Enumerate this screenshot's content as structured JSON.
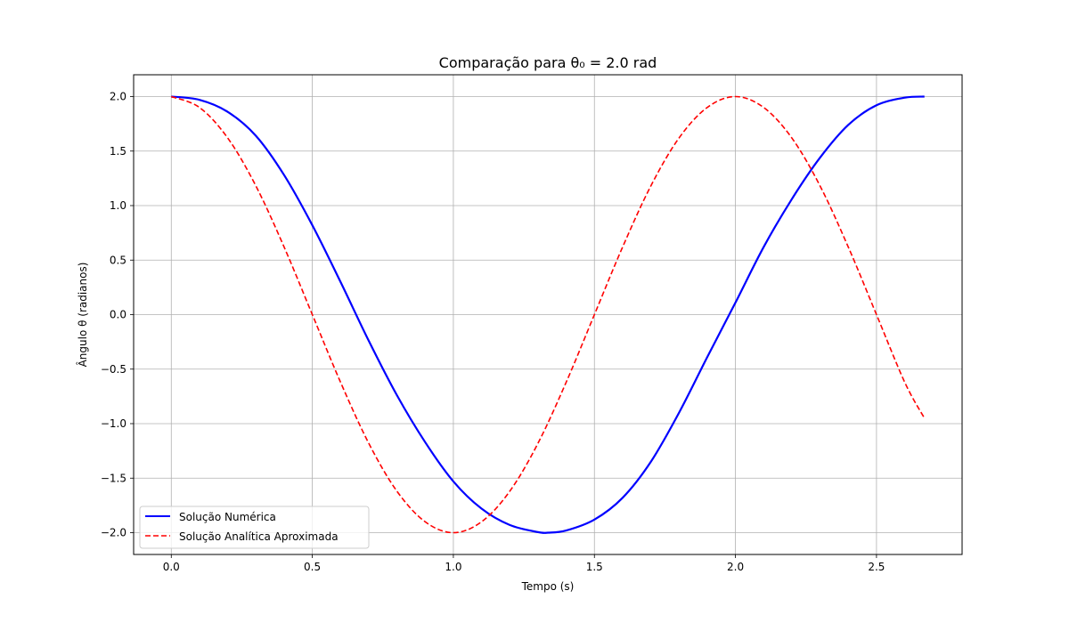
{
  "chart_data": {
    "type": "line",
    "title": "Comparação para θ₀ = 2.0 rad",
    "xlabel": "Tempo (s)",
    "ylabel": "Ângulo θ (radianos)",
    "xlim": [
      -0.1335,
      2.8035
    ],
    "ylim": [
      -2.2,
      2.2
    ],
    "xticks": [
      0.0,
      0.5,
      1.0,
      1.5,
      2.0,
      2.5
    ],
    "xtick_labels": [
      "0.0",
      "0.5",
      "1.0",
      "1.5",
      "2.0",
      "2.5"
    ],
    "yticks": [
      -2.0,
      -1.5,
      -1.0,
      -0.5,
      0.0,
      0.5,
      1.0,
      1.5,
      2.0
    ],
    "ytick_labels": [
      "−2.0",
      "−1.5",
      "−1.0",
      "−0.5",
      "0.0",
      "0.5",
      "1.0",
      "1.5",
      "2.0"
    ],
    "grid": true,
    "legend_position": "lower-left",
    "series": [
      {
        "name": "Solução Numérica",
        "color": "#0000ff",
        "style": "solid",
        "x": [
          0.0,
          0.1,
          0.2,
          0.3,
          0.4,
          0.5,
          0.6,
          0.7,
          0.8,
          0.9,
          1.0,
          1.1,
          1.2,
          1.3,
          1.335,
          1.4,
          1.5,
          1.6,
          1.7,
          1.8,
          1.9,
          2.0,
          2.1,
          2.2,
          2.3,
          2.4,
          2.5,
          2.6,
          2.67
        ],
        "y": [
          2.0,
          1.97,
          1.86,
          1.64,
          1.28,
          0.82,
          0.3,
          -0.24,
          -0.74,
          -1.17,
          -1.53,
          -1.78,
          -1.93,
          -1.995,
          -2.0,
          -1.98,
          -1.88,
          -1.68,
          -1.35,
          -0.9,
          -0.39,
          0.11,
          0.62,
          1.06,
          1.44,
          1.74,
          1.92,
          1.99,
          2.0
        ]
      },
      {
        "name": "Solução Analítica Aproximada",
        "color": "#ff0000",
        "style": "dashed",
        "x": [
          0.0,
          0.1,
          0.2,
          0.3,
          0.4,
          0.5,
          0.6,
          0.7,
          0.8,
          0.9,
          1.0,
          1.1,
          1.2,
          1.3,
          1.4,
          1.5,
          1.6,
          1.7,
          1.8,
          1.9,
          2.0,
          2.1,
          2.2,
          2.3,
          2.4,
          2.5,
          2.6,
          2.67
        ],
        "y": [
          2.0,
          1.9,
          1.62,
          1.18,
          0.62,
          0.0,
          -0.62,
          -1.18,
          -1.62,
          -1.9,
          -2.0,
          -1.9,
          -1.62,
          -1.18,
          -0.62,
          0.0,
          0.62,
          1.18,
          1.62,
          1.9,
          2.0,
          1.9,
          1.62,
          1.18,
          0.62,
          0.0,
          -0.62,
          -0.95
        ]
      }
    ]
  }
}
